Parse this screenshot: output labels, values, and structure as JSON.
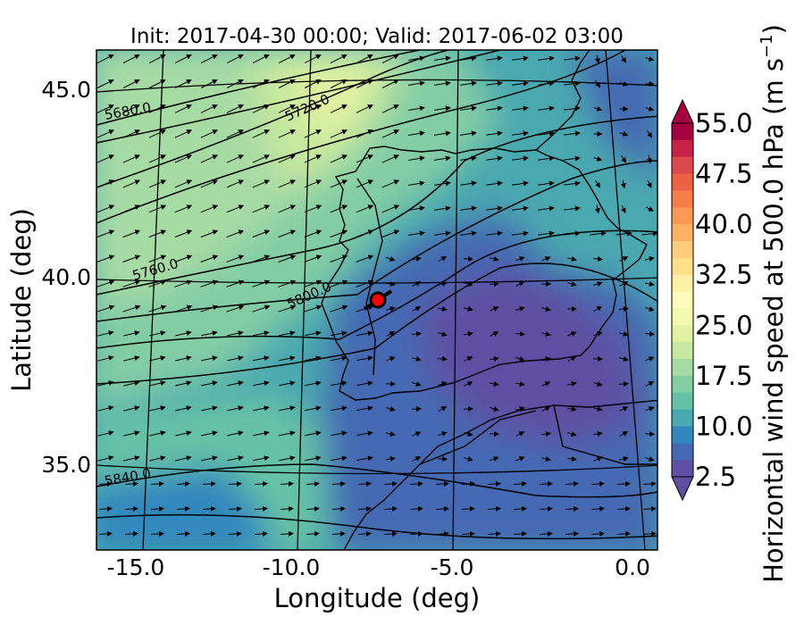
{
  "title": "Init: 2017-04-30 00:00; Valid: 2017-06-02 03:00",
  "x_axis": {
    "label": "Longitude (deg)",
    "ticks": [
      "-15.0",
      "-10.0",
      "-5.0",
      "0.0"
    ]
  },
  "y_axis": {
    "label": "Latitude (deg)",
    "ticks": [
      "45.0",
      "40.0",
      "35.0"
    ]
  },
  "colorbar": {
    "label": "Horizontal wind speed at 500.0 hPa",
    "unit_base": "(m s",
    "unit_exp": "−1",
    "unit_close": ")",
    "ticks": [
      "55.0",
      "47.5",
      "40.0",
      "32.5",
      "25.0",
      "17.5",
      "10.0",
      "2.5"
    ],
    "colors": [
      "#a50040",
      "#c72348",
      "#dc494c",
      "#ed6145",
      "#f67d4a",
      "#fa9856",
      "#fdb163",
      "#fecc7a",
      "#fee08b",
      "#fff0a7",
      "#fffcbb",
      "#f3faad",
      "#e1f3a2",
      "#c7e89e",
      "#a7dba4",
      "#83cda5",
      "#66c2a5",
      "#4aa8b0",
      "#3288bd",
      "#4569b2",
      "#5e4fa2"
    ]
  },
  "contours": {
    "labels": [
      "5680.0",
      "5720.0",
      "5760.0",
      "5800.0",
      "5840.0"
    ]
  },
  "marker": {
    "color": "#ff0000"
  },
  "chart_data": {
    "type": "map",
    "title": "Init: 2017-04-30 00:00; Valid: 2017-06-02 03:00",
    "xlabel": "Longitude (deg)",
    "ylabel": "Latitude (deg)",
    "xlim": [
      -16.0,
      0.3
    ],
    "ylim": [
      32.7,
      46.0
    ],
    "field": "Horizontal wind speed at 500.0 hPa (m s^-1)",
    "colorbar_range": [
      2.5,
      55.0
    ],
    "contour_labels": [
      5680.0,
      5720.0,
      5760.0,
      5800.0,
      5840.0
    ],
    "marker_location": {
      "lon": -7.7,
      "lat": 39.4
    },
    "wind_speed_regions": [
      {
        "region": "northwest Atlantic",
        "approx_speed": 17.5
      },
      {
        "region": "western Iberia and Bay of Biscay",
        "approx_speed": 20.0
      },
      {
        "region": "central and southern Iberia",
        "approx_speed": 5.0
      },
      {
        "region": "southeast Mediterranean",
        "approx_speed": 4.0
      },
      {
        "region": "southwest Atlantic",
        "approx_speed": 8.0
      }
    ]
  }
}
